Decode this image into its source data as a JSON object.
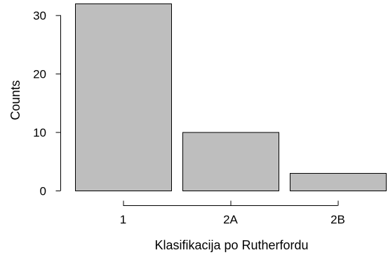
{
  "chart_data": {
    "type": "bar",
    "categories": [
      "1",
      "2A",
      "2B"
    ],
    "values": [
      32,
      10,
      3
    ],
    "title": "",
    "xlabel": "Klasifikacija po Rutherfordu",
    "ylabel": "Counts",
    "ylim": [
      0,
      32
    ],
    "yticks": [
      0,
      10,
      20,
      30
    ],
    "bar_color": "#bebebe",
    "bar_edge_color": "#000000",
    "grid": false
  }
}
